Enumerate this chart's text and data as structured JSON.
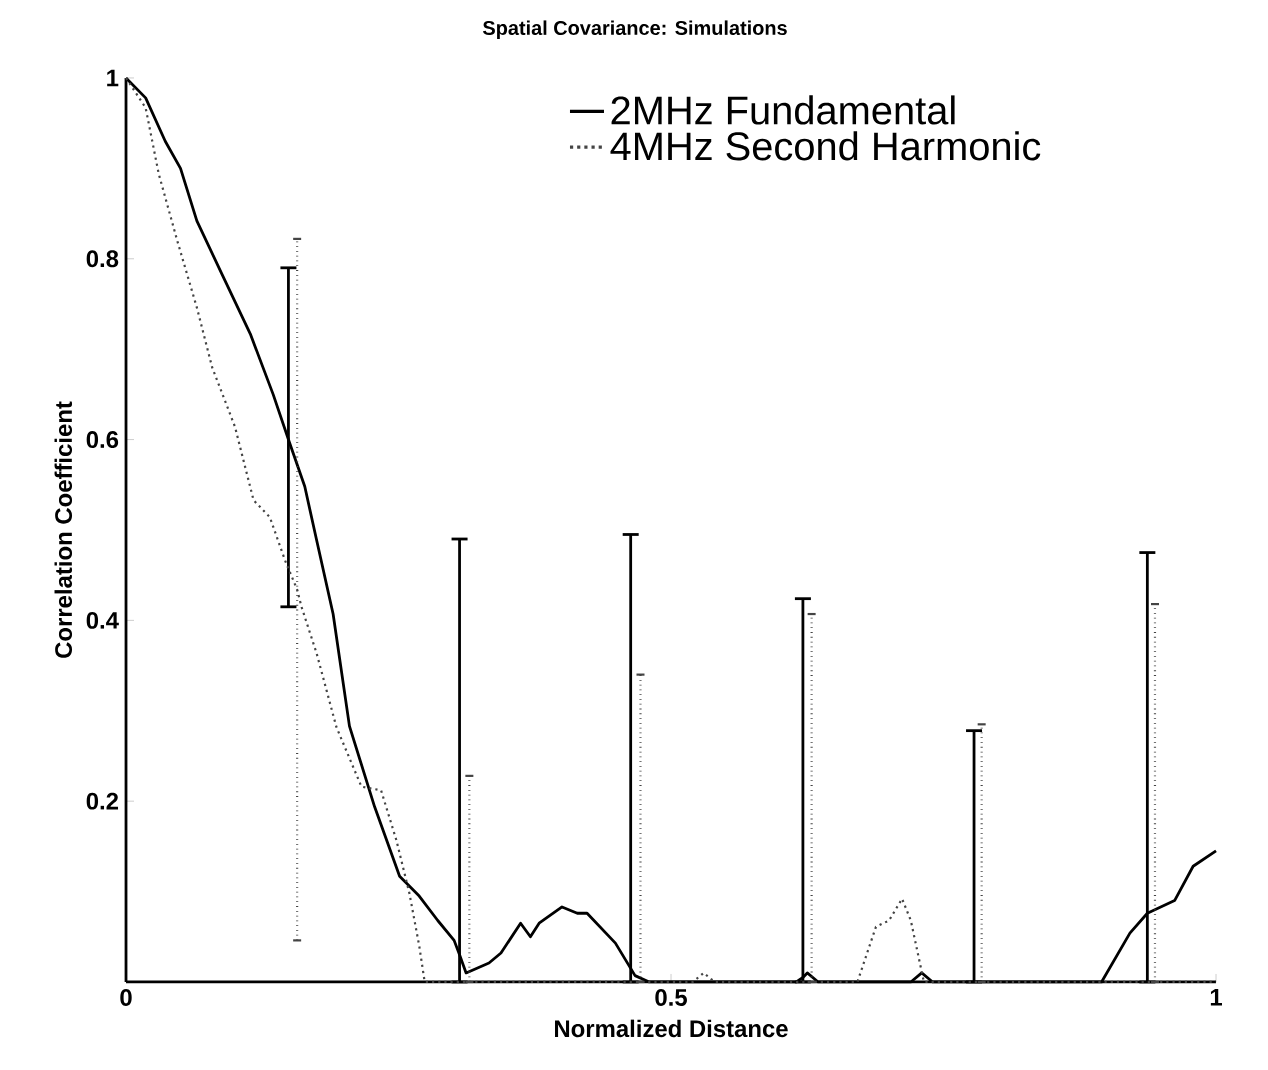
{
  "chart_data": {
    "type": "line",
    "title": "Spatial Covariance: Simulations",
    "xlabel": "Normalized Distance",
    "ylabel": "Correlation Coefficient",
    "xlim": [
      0,
      1
    ],
    "ylim": [
      0,
      1
    ],
    "xticks": [
      0,
      0.5,
      1
    ],
    "yticks": [
      0.2,
      0.4,
      0.6,
      0.8,
      1
    ],
    "legend": "top right",
    "series": [
      {
        "name": "2MHz Fundamental",
        "color": "#000000",
        "line_style": "solid",
        "x": [
          0,
          0.018,
          0.036,
          0.05,
          0.065,
          0.088,
          0.114,
          0.135,
          0.149,
          0.164,
          0.175,
          0.19,
          0.205,
          0.228,
          0.251,
          0.269,
          0.286,
          0.301,
          0.306,
          0.312,
          0.333,
          0.344,
          0.362,
          0.371,
          0.379,
          0.4,
          0.414,
          0.423,
          0.449,
          0.463,
          0.467,
          0.48,
          0.615,
          0.621,
          0.625,
          0.635,
          0.72,
          0.73,
          0.74,
          0.778,
          0.895,
          0.921,
          0.937,
          0.962,
          0.979,
          1
        ],
        "values": [
          1,
          0.978,
          0.93,
          0.9,
          0.842,
          0.783,
          0.717,
          0.65,
          0.6,
          0.548,
          0.488,
          0.407,
          0.283,
          0.194,
          0.117,
          0.095,
          0.068,
          0.046,
          0.03,
          0.01,
          0.021,
          0.032,
          0.065,
          0.05,
          0.065,
          0.083,
          0.076,
          0.076,
          0.043,
          0.015,
          0.007,
          0,
          0,
          0.005,
          0.01,
          0,
          0,
          0.01,
          0,
          0,
          0,
          0.054,
          0.076,
          0.09,
          0.128,
          0.145
        ],
        "errors": [
          null,
          null,
          null,
          null,
          null,
          null,
          null,
          null,
          [
            0.415,
            0.79
          ],
          null,
          null,
          null,
          null,
          null,
          null,
          null,
          null,
          null,
          [
            0,
            0.49
          ],
          null,
          null,
          null,
          null,
          null,
          null,
          null,
          null,
          null,
          null,
          [
            0,
            0.495
          ],
          null,
          null,
          null,
          [
            0,
            0.424
          ],
          null,
          null,
          null,
          null,
          null,
          [
            0,
            0.278
          ],
          null,
          null,
          [
            0,
            0.475
          ],
          null,
          null,
          null
        ]
      },
      {
        "name": "4MHz Second Harmonic",
        "color": "#444444",
        "line_style": "dotted",
        "x": [
          0,
          0.018,
          0.03,
          0.047,
          0.065,
          0.079,
          0.1,
          0.117,
          0.132,
          0.146,
          0.157,
          0.161,
          0.175,
          0.193,
          0.216,
          0.234,
          0.248,
          0.26,
          0.269,
          0.274,
          0.315,
          0.472,
          0.52,
          0.53,
          0.54,
          0.629,
          0.671,
          0.688,
          0.7,
          0.712,
          0.72,
          0.732,
          0.785,
          0.944,
          1
        ],
        "values": [
          1,
          0.967,
          0.894,
          0.82,
          0.746,
          0.68,
          0.614,
          0.533,
          0.514,
          0.466,
          0.434,
          0.415,
          0.363,
          0.282,
          0.216,
          0.212,
          0.157,
          0.098,
          0.04,
          0,
          0,
          0,
          0,
          0.01,
          0,
          0,
          0,
          0.061,
          0.068,
          0.092,
          0.068,
          0,
          0,
          0,
          0
        ],
        "errors": [
          null,
          null,
          null,
          null,
          null,
          null,
          null,
          null,
          null,
          null,
          [
            0.046,
            0.822
          ],
          null,
          null,
          null,
          null,
          null,
          null,
          null,
          null,
          null,
          [
            0,
            0.228
          ],
          [
            0,
            0.34
          ],
          null,
          null,
          null,
          [
            0,
            0.407
          ],
          null,
          null,
          null,
          null,
          null,
          null,
          [
            0,
            0.285
          ],
          [
            0,
            0.418
          ],
          null
        ]
      }
    ]
  }
}
